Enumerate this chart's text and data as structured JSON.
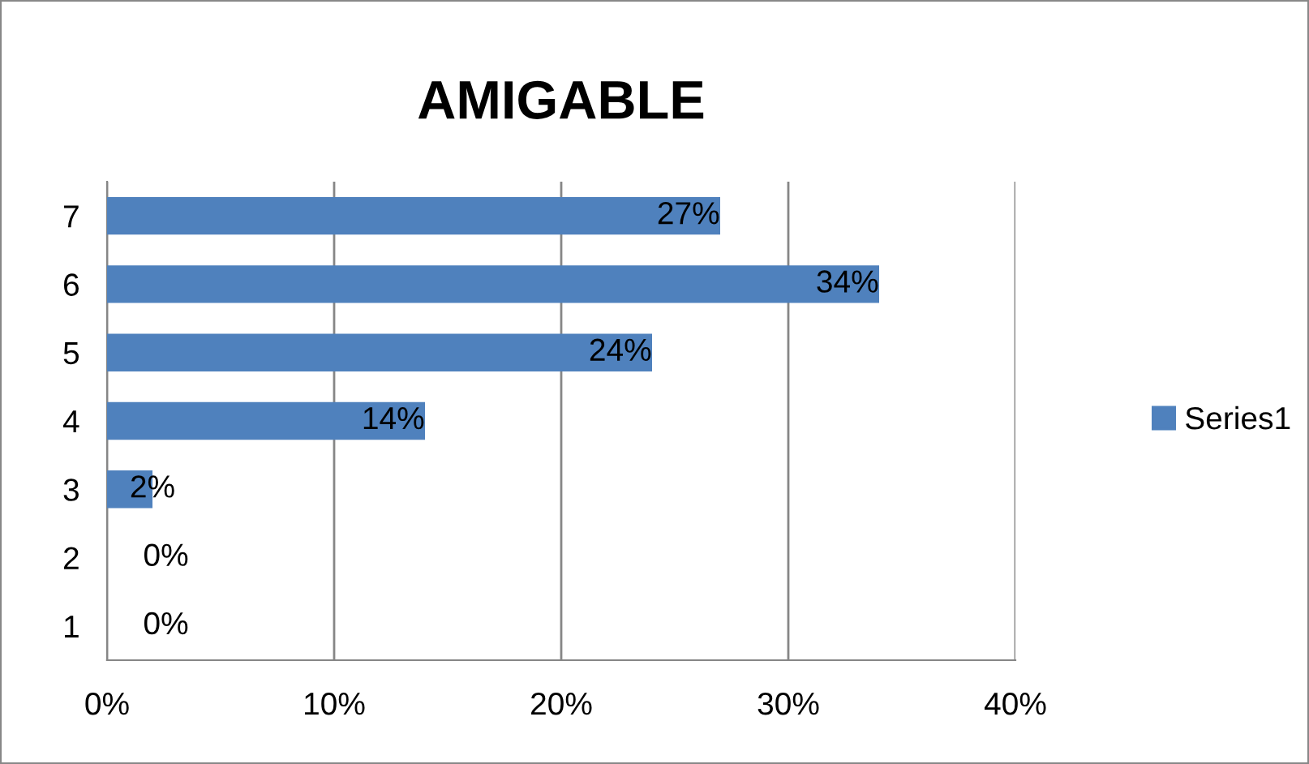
{
  "chart_data": {
    "type": "bar",
    "orientation": "horizontal",
    "title": "AMIGABLE",
    "categories": [
      "7",
      "6",
      "5",
      "4",
      "3",
      "2",
      "1"
    ],
    "series": [
      {
        "name": "Series1",
        "color": "#4f81bd",
        "values": [
          27,
          34,
          24,
          14,
          2,
          0,
          0
        ],
        "value_labels": [
          "27%",
          "34%",
          "24%",
          "14%",
          "2%",
          "0%",
          "0%"
        ]
      }
    ],
    "xlim": [
      0,
      40
    ],
    "xticks": [
      {
        "value": 0,
        "label": "0%"
      },
      {
        "value": 10,
        "label": "10%"
      },
      {
        "value": 20,
        "label": "20%"
      },
      {
        "value": 30,
        "label": "30%"
      },
      {
        "value": 40,
        "label": "40%"
      }
    ],
    "grid": "x",
    "legend": "right"
  }
}
